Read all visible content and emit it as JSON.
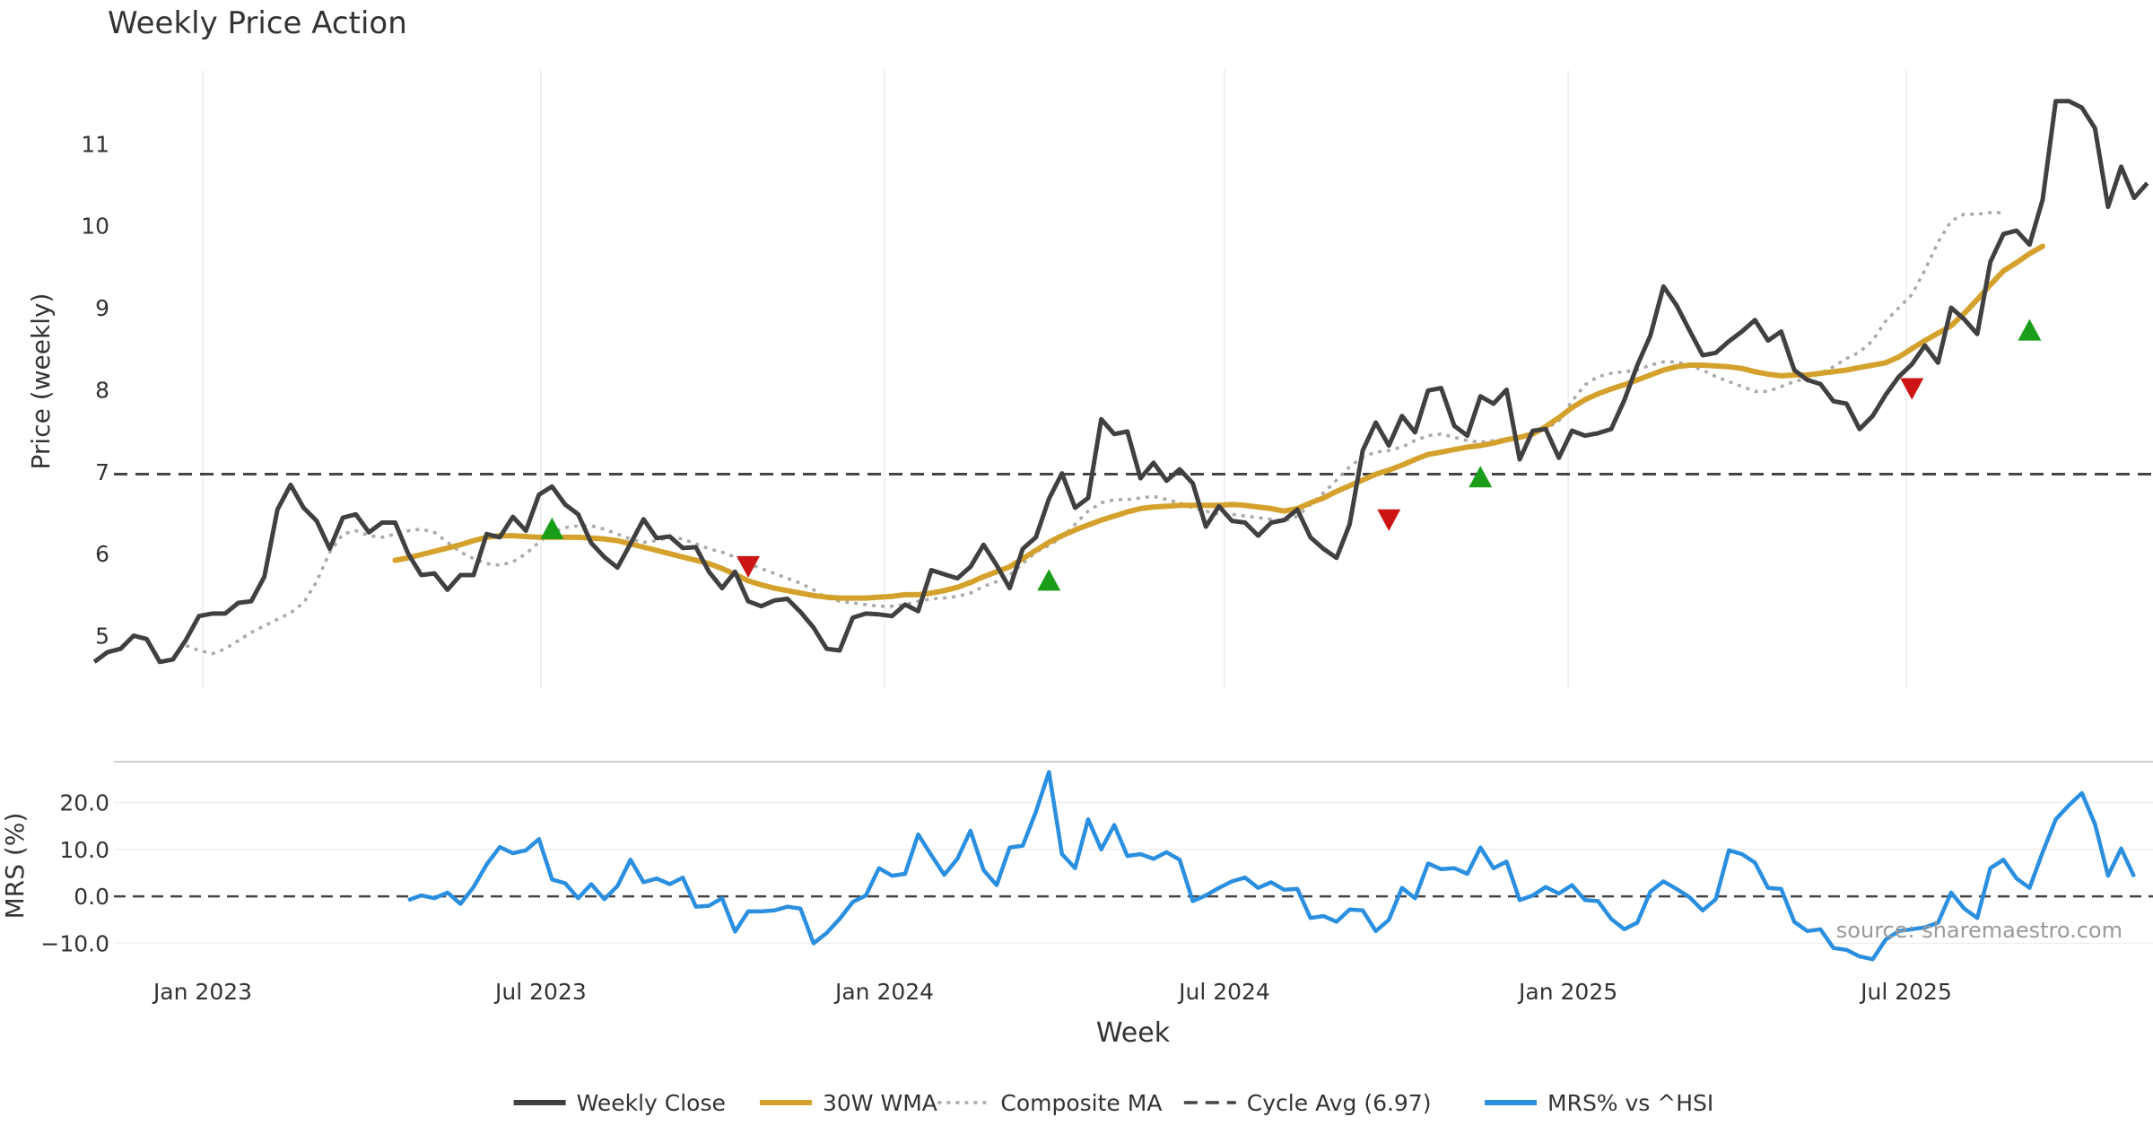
{
  "chart_data": {
    "type": "line",
    "title": "Weekly Price Action",
    "source_note": "source: sharemaestro.com",
    "x_ticks": [
      "Jan 2023",
      "Jul 2023",
      "Jan 2024",
      "Jul 2024",
      "Jan 2025",
      "Jul 2025"
    ],
    "xlabel": "Week",
    "panels": [
      {
        "name": "price",
        "ylabel": "Price (weekly)",
        "ylim": [
          4.35,
          11.9
        ],
        "y_ticks": [
          5,
          6,
          7,
          8,
          9,
          10,
          11
        ],
        "grid": "vertical",
        "series": [
          {
            "name": "Weekly Close",
            "color": "#404040",
            "style": "solid",
            "x_start": "2022-11-04",
            "step_days": 7,
            "values": [
              4.68,
              4.8,
              4.84,
              5.0,
              4.96,
              4.68,
              4.71,
              4.95,
              5.24,
              5.27,
              5.27,
              5.4,
              5.42,
              5.72,
              6.54,
              6.84,
              6.56,
              6.4,
              6.06,
              6.44,
              6.48,
              6.26,
              6.38,
              6.38,
              6.0,
              5.74,
              5.76,
              5.56,
              5.74,
              5.74,
              6.24,
              6.2,
              6.45,
              6.28,
              6.72,
              6.82,
              6.6,
              6.48,
              6.13,
              5.96,
              5.83,
              6.12,
              6.42,
              6.19,
              6.21,
              6.07,
              6.08,
              5.78,
              5.58,
              5.78,
              5.42,
              5.36,
              5.43,
              5.45,
              5.29,
              5.1,
              4.84,
              4.82,
              5.22,
              5.27,
              5.26,
              5.24,
              5.38,
              5.3,
              5.8,
              5.75,
              5.7,
              5.84,
              6.11,
              5.86,
              5.58,
              6.06,
              6.2,
              6.67,
              6.98,
              6.56,
              6.68,
              7.64,
              7.46,
              7.49,
              6.92,
              7.11,
              6.89,
              7.03,
              6.86,
              6.33,
              6.58,
              6.4,
              6.38,
              6.22,
              6.38,
              6.41,
              6.54,
              6.2,
              6.06,
              5.95,
              6.36,
              7.26,
              7.6,
              7.32,
              7.68,
              7.48,
              7.99,
              8.02,
              7.56,
              7.44,
              7.92,
              7.83,
              8.0,
              7.15,
              7.5,
              7.52,
              7.17,
              7.5,
              7.44,
              7.47,
              7.52,
              7.87,
              8.3,
              8.66,
              9.26,
              9.03,
              8.72,
              8.42,
              8.45,
              8.59,
              8.71,
              8.85,
              8.6,
              8.71,
              8.24,
              8.12,
              8.07,
              7.86,
              7.83,
              7.52,
              7.68,
              7.94,
              8.16,
              8.31,
              8.54,
              8.33,
              9.0,
              8.86,
              8.68,
              9.56,
              9.9,
              9.94,
              9.77,
              10.32,
              11.52,
              11.52,
              11.44,
              11.19,
              10.23,
              10.72,
              10.34,
              10.52
            ]
          },
          {
            "name": "30W WMA",
            "color": "#d4a22c",
            "style": "solid",
            "x_start": "2023-04-14",
            "step_days": 7,
            "values": [
              5.92,
              5.95,
              5.99,
              6.03,
              6.07,
              6.11,
              6.16,
              6.2,
              6.22,
              6.22,
              6.21,
              6.2,
              6.2,
              6.2,
              6.2,
              6.19,
              6.18,
              6.16,
              6.12,
              6.08,
              6.04,
              6.0,
              5.96,
              5.92,
              5.88,
              5.82,
              5.75,
              5.67,
              5.62,
              5.58,
              5.55,
              5.52,
              5.49,
              5.47,
              5.46,
              5.46,
              5.46,
              5.47,
              5.48,
              5.5,
              5.5,
              5.52,
              5.55,
              5.59,
              5.65,
              5.72,
              5.78,
              5.84,
              5.94,
              6.04,
              6.14,
              6.22,
              6.29,
              6.35,
              6.41,
              6.46,
              6.51,
              6.55,
              6.57,
              6.58,
              6.59,
              6.59,
              6.59,
              6.59,
              6.6,
              6.59,
              6.57,
              6.55,
              6.52,
              6.55,
              6.62,
              6.68,
              6.76,
              6.83,
              6.9,
              6.97,
              7.02,
              7.08,
              7.15,
              7.21,
              7.24,
              7.27,
              7.3,
              7.32,
              7.35,
              7.39,
              7.42,
              7.46,
              7.55,
              7.66,
              7.78,
              7.88,
              7.95,
              8.01,
              8.06,
              8.12,
              8.18,
              8.24,
              8.28,
              8.3,
              8.3,
              8.29,
              8.28,
              8.26,
              8.22,
              8.19,
              8.17,
              8.18,
              8.18,
              8.2,
              8.22,
              8.24,
              8.27,
              8.3,
              8.33,
              8.4,
              8.5,
              8.6,
              8.69,
              8.78,
              8.93,
              9.1,
              9.28,
              9.45,
              9.55,
              9.66,
              9.75
            ]
          },
          {
            "name": "Composite MA",
            "color": "#aaaaaa",
            "style": "dotted",
            "x_start": "2022-12-23",
            "step_days": 7,
            "values": [
              4.88,
              4.82,
              4.78,
              4.84,
              4.94,
              5.04,
              5.12,
              5.2,
              5.28,
              5.4,
              5.66,
              6.02,
              6.24,
              6.28,
              6.22,
              6.2,
              6.24,
              6.28,
              6.3,
              6.26,
              6.14,
              6.02,
              5.94,
              5.88,
              5.86,
              5.9,
              6.0,
              6.14,
              6.26,
              6.32,
              6.34,
              6.34,
              6.3,
              6.24,
              6.18,
              6.14,
              6.16,
              6.2,
              6.18,
              6.12,
              6.06,
              6.02,
              5.96,
              5.88,
              5.82,
              5.76,
              5.7,
              5.64,
              5.56,
              5.46,
              5.42,
              5.4,
              5.38,
              5.36,
              5.36,
              5.38,
              5.42,
              5.45,
              5.46,
              5.48,
              5.52,
              5.6,
              5.66,
              5.74,
              5.88,
              6.02,
              6.1,
              6.2,
              6.36,
              6.52,
              6.62,
              6.66,
              6.66,
              6.68,
              6.7,
              6.66,
              6.62,
              6.56,
              6.52,
              6.48,
              6.48,
              6.46,
              6.44,
              6.42,
              6.4,
              6.46,
              6.6,
              6.74,
              6.9,
              7.06,
              7.18,
              7.24,
              7.26,
              7.3,
              7.38,
              7.44,
              7.46,
              7.42,
              7.38,
              7.36,
              7.38,
              7.4,
              7.42,
              7.46,
              7.52,
              7.62,
              7.86,
              8.06,
              8.16,
              8.2,
              8.22,
              8.24,
              8.3,
              8.34,
              8.34,
              8.3,
              8.24,
              8.16,
              8.1,
              8.04,
              7.98,
              7.98,
              8.04,
              8.1,
              8.14,
              8.2,
              8.28,
              8.38,
              8.46,
              8.6,
              8.84,
              9.0,
              9.16,
              9.46,
              9.8,
              10.06,
              10.14,
              10.14,
              10.16,
              10.16
            ]
          },
          {
            "name": "Cycle Avg (6.97)",
            "color": "#444444",
            "style": "dashed",
            "value": 6.97
          }
        ],
        "markers": [
          {
            "type": "buy",
            "date": "2023-07-07",
            "value": 6.3,
            "color": "#1a9e1a"
          },
          {
            "type": "sell",
            "date": "2023-10-20",
            "value": 5.85,
            "color": "#cc1414"
          },
          {
            "type": "buy",
            "date": "2024-03-29",
            "value": 5.67,
            "color": "#1a9e1a"
          },
          {
            "type": "sell",
            "date": "2024-09-27",
            "value": 6.42,
            "color": "#cc1414"
          },
          {
            "type": "buy",
            "date": "2024-11-15",
            "value": 6.93,
            "color": "#1a9e1a"
          },
          {
            "type": "sell",
            "date": "2025-07-04",
            "value": 8.02,
            "color": "#cc1414"
          },
          {
            "type": "buy",
            "date": "2025-09-05",
            "value": 8.72,
            "color": "#1a9e1a"
          }
        ]
      },
      {
        "name": "mrs",
        "ylabel": "MRS (%)",
        "ylim": [
          -14.5,
          28.5
        ],
        "y_ticks": [
          "20.0",
          "10.0",
          "0.0",
          "−10.0"
        ],
        "y_tick_values": [
          20,
          10,
          0,
          -10
        ],
        "grid": "horizontal",
        "series": [
          {
            "name": "MRS% vs ^HSI",
            "color": "#2b8fe0",
            "style": "solid",
            "x_start": "2023-04-21",
            "step_days": 7,
            "values": [
              -0.8,
              0.2,
              -0.4,
              0.8,
              -1.6,
              2.0,
              6.8,
              10.5,
              9.2,
              9.8,
              12.2,
              3.6,
              2.8,
              -0.4,
              2.6,
              -0.6,
              2.2,
              7.8,
              3.0,
              3.8,
              2.6,
              4.0,
              -2.2,
              -2.0,
              -0.4,
              -7.5,
              -3.2,
              -3.2,
              -3.0,
              -2.2,
              -2.6,
              -10.0,
              -7.8,
              -4.8,
              -1.2,
              0.2,
              6.0,
              4.4,
              4.8,
              13.2,
              8.8,
              4.6,
              8.0,
              14.0,
              5.6,
              2.4,
              10.4,
              10.8,
              18.0,
              26.5,
              9.0,
              6.0,
              16.4,
              10.0,
              15.2,
              8.6,
              9.0,
              8.0,
              9.4,
              7.8,
              -1.0,
              0.2,
              1.8,
              3.2,
              4.0,
              1.8,
              3.0,
              1.4,
              1.6,
              -4.6,
              -4.2,
              -5.4,
              -2.8,
              -3.0,
              -7.4,
              -5.0,
              1.8,
              -0.4,
              7.0,
              5.8,
              6.0,
              4.8,
              10.4,
              6.0,
              7.4,
              -0.8,
              0.2,
              2.0,
              0.6,
              2.4,
              -0.8,
              -1.0,
              -4.8,
              -7.0,
              -5.6,
              1.0,
              3.2,
              1.6,
              -0.2,
              -3.0,
              -0.6,
              9.8,
              9.0,
              7.2,
              1.8,
              1.6,
              -5.4,
              -7.4,
              -7.0,
              -11.0,
              -11.4,
              -12.8,
              -13.4,
              -9.2,
              -7.4,
              -7.0,
              -6.6,
              -5.6,
              0.8,
              -2.6,
              -4.6,
              6.0,
              7.8,
              3.8,
              1.8,
              9.4,
              16.4,
              19.4,
              22.0,
              15.4,
              4.4,
              10.2,
              4.2
            ]
          }
        ]
      }
    ],
    "legend": {
      "placement": "bottom-center",
      "items": [
        {
          "label": "Weekly Close",
          "color": "#404040",
          "style": "solid"
        },
        {
          "label": "30W WMA",
          "color": "#d4a22c",
          "style": "solid"
        },
        {
          "label": "Composite MA",
          "color": "#aaaaaa",
          "style": "dotted"
        },
        {
          "label": "Cycle Avg (6.97)",
          "color": "#444444",
          "style": "dashed"
        },
        {
          "label": "MRS% vs ^HSI",
          "color": "#2b8fe0",
          "style": "solid"
        }
      ]
    }
  }
}
